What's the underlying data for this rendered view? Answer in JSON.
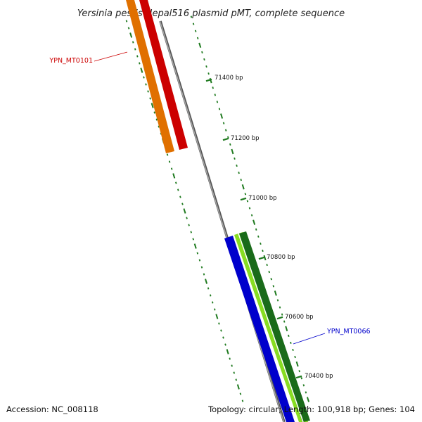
{
  "title": "Yersinia pestis Nepal516 plasmid pMT, complete sequence",
  "ticks": [
    {
      "label": "71400 bp"
    },
    {
      "label": "71200 bp"
    },
    {
      "label": "71000 bp"
    },
    {
      "label": "70800 bp"
    },
    {
      "label": "70600 bp"
    },
    {
      "label": "70400 bp"
    }
  ],
  "genes": {
    "red": {
      "label": "YPN_MT0101",
      "color": "#cc0000"
    },
    "blue": {
      "label": "YPN_MT0066",
      "color": "#0000cc"
    }
  },
  "footer": {
    "accession": "Accession: NC_008118",
    "stats": "Topology: circular; Length: 100,918 bp; Genes: 104"
  },
  "colors": {
    "backbone": "#8c8c8c",
    "tick": "#1f7a1f",
    "orange_feature": "#ff8c00",
    "red_feature": "#ee0000",
    "blue_feature": "#0000ee",
    "light_green_feature": "#99ee33",
    "dark_green_feature": "#228b22"
  }
}
